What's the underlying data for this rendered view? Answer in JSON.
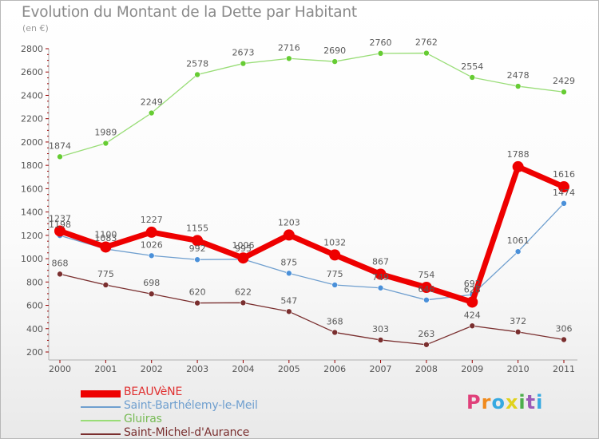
{
  "title": "Evolution du Montant de la Dette par Habitant",
  "unit": "(en €)",
  "brand": "Proxiti",
  "colors": {
    "brand_letters": [
      "#e0407a",
      "#f08a1c",
      "#36a9e1",
      "#e0d21c",
      "#4cae4c",
      "#9b59b6",
      "#36a9e1"
    ]
  },
  "chart_data": {
    "type": "line",
    "title": "Evolution du Montant de la Dette par Habitant",
    "subtitle": "(en €)",
    "xlabel": "",
    "ylabel": "",
    "categories": [
      "2000",
      "2001",
      "2002",
      "2003",
      "2004",
      "2005",
      "2006",
      "2007",
      "2008",
      "2009",
      "2010",
      "2011"
    ],
    "ylim": [
      200,
      2800
    ],
    "yticks": [
      200,
      400,
      600,
      800,
      1000,
      1200,
      1400,
      1600,
      1800,
      2000,
      2200,
      2400,
      2600,
      2800
    ],
    "grid": false,
    "legend_position": "bottom-left",
    "series": [
      {
        "name": "BEAUVèNE",
        "color": "#ee0000",
        "marker_color": "#ee0000",
        "values": [
          1237,
          1100,
          1227,
          1155,
          1006,
          1203,
          1032,
          867,
          754,
          628,
          1788,
          1616
        ],
        "labels": [
          "1237",
          "1100",
          "1227",
          "1155",
          "1006",
          "1203",
          "1032",
          "867",
          "754",
          "628",
          "1788",
          "1616"
        ]
      },
      {
        "name": "Saint-Barthélemy-le-Meil",
        "color": "#6f9fcf",
        "marker_color": "#4a90d9",
        "values": [
          1198,
          1083,
          1026,
          992,
          995,
          875,
          775,
          749,
          646,
          692,
          1061,
          1474
        ],
        "labels": [
          "1198",
          "1083",
          "1026",
          "992",
          "995",
          "875",
          "775",
          "749",
          "646",
          "692",
          "1061",
          "1474"
        ]
      },
      {
        "name": "Gluiras",
        "color": "#99dd77",
        "marker_color": "#66cc33",
        "values": [
          1874,
          1989,
          2249,
          2578,
          2673,
          2716,
          2690,
          2760,
          2762,
          2554,
          2478,
          2429
        ],
        "labels": [
          "1874",
          "1989",
          "2249",
          "2578",
          "2673",
          "2716",
          "2690",
          "2760",
          "2762",
          "2554",
          "2478",
          "2429"
        ]
      },
      {
        "name": "Saint-Michel-d'Aurance",
        "color": "#7a2f2f",
        "marker_color": "#7a2f2f",
        "values": [
          868,
          775,
          698,
          620,
          622,
          547,
          368,
          303,
          263,
          424,
          372,
          306
        ],
        "labels": [
          "868",
          "775",
          "698",
          "620",
          "622",
          "547",
          "368",
          "303",
          "263",
          "424",
          "372",
          "306"
        ]
      }
    ]
  }
}
